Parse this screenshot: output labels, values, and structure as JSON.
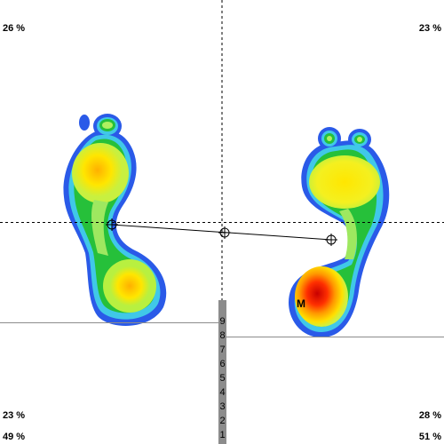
{
  "quadrants": {
    "top_left": "26 %",
    "top_right": "23 %",
    "bottom_left": "23 %",
    "bottom_right": "28 %"
  },
  "totals": {
    "left": "49 %",
    "right": "51 %"
  },
  "max_marker": "M",
  "scale": {
    "labels": [
      "9",
      "8",
      "7",
      "6",
      "5",
      "4",
      "3",
      "2",
      "1"
    ],
    "color": "#8c8c8c"
  },
  "colors": {
    "low": "#2255e0",
    "mid_low": "#22c040",
    "mid": "#b0f050",
    "high": "#ffe600",
    "very_high": "#ff8c00",
    "peak": "#dd1010"
  }
}
